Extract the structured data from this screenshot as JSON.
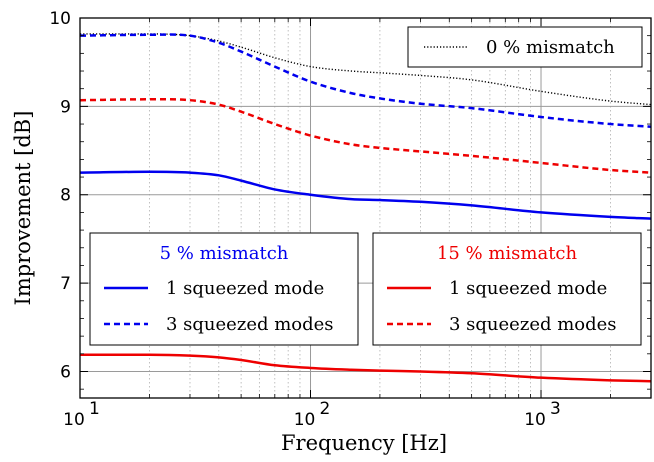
{
  "chart_data": {
    "type": "line",
    "xlabel": "Frequency [Hz]",
    "ylabel": "Improvement [dB]",
    "xscale": "log",
    "xlim": [
      10,
      3000
    ],
    "ylim": [
      5.7,
      10
    ],
    "xticks": [
      {
        "value": 10,
        "base": "10",
        "exp": "1"
      },
      {
        "value": 100,
        "base": "10",
        "exp": "2"
      },
      {
        "value": 1000,
        "base": "10",
        "exp": "3"
      }
    ],
    "yticks": [
      6,
      7,
      8,
      9,
      10
    ],
    "grid": true,
    "colors": {
      "zero": "#000000",
      "five": "#0000ee",
      "fifteen": "#ee0000"
    },
    "series": [
      {
        "name": "0 % mismatch",
        "color": "#000000",
        "dash": "dotted",
        "x": [
          10,
          20,
          30,
          40,
          50,
          70,
          100,
          150,
          200,
          300,
          500,
          1000,
          2000,
          3000
        ],
        "y": [
          9.82,
          9.82,
          9.8,
          9.74,
          9.67,
          9.55,
          9.45,
          9.4,
          9.38,
          9.35,
          9.3,
          9.17,
          9.06,
          9.02
        ]
      },
      {
        "name": "1 squeezed mode",
        "group": "5 % mismatch",
        "color": "#0000ee",
        "dash": "solid",
        "x": [
          10,
          20,
          30,
          40,
          50,
          70,
          100,
          150,
          200,
          300,
          500,
          1000,
          2000,
          3000
        ],
        "y": [
          8.25,
          8.26,
          8.25,
          8.22,
          8.16,
          8.06,
          8.0,
          7.95,
          7.94,
          7.92,
          7.88,
          7.8,
          7.75,
          7.73
        ]
      },
      {
        "name": "3 squeezed modes",
        "group": "5 % mismatch",
        "color": "#0000ee",
        "dash": "dashed",
        "x": [
          10,
          20,
          30,
          40,
          50,
          70,
          100,
          150,
          200,
          300,
          500,
          1000,
          2000,
          3000
        ],
        "y": [
          9.8,
          9.81,
          9.8,
          9.72,
          9.62,
          9.45,
          9.28,
          9.15,
          9.09,
          9.03,
          8.98,
          8.88,
          8.8,
          8.77
        ]
      },
      {
        "name": "1 squeezed mode",
        "group": "15 % mismatch",
        "color": "#ee0000",
        "dash": "solid",
        "x": [
          10,
          20,
          30,
          40,
          50,
          70,
          100,
          150,
          200,
          300,
          500,
          1000,
          2000,
          3000
        ],
        "y": [
          6.19,
          6.19,
          6.18,
          6.16,
          6.13,
          6.07,
          6.04,
          6.02,
          6.01,
          6.0,
          5.98,
          5.93,
          5.9,
          5.89
        ]
      },
      {
        "name": "3 squeezed modes",
        "group": "15 % mismatch",
        "color": "#ee0000",
        "dash": "dashed",
        "x": [
          10,
          20,
          30,
          40,
          50,
          70,
          100,
          150,
          200,
          300,
          500,
          1000,
          2000,
          3000
        ],
        "y": [
          9.07,
          9.08,
          9.07,
          9.02,
          8.94,
          8.8,
          8.67,
          8.57,
          8.53,
          8.49,
          8.44,
          8.36,
          8.28,
          8.25
        ]
      }
    ],
    "legends": [
      {
        "position": "top-right",
        "entries": [
          "0 % mismatch"
        ]
      },
      {
        "position": "lower-left",
        "title": "5 % mismatch",
        "entries": [
          "1 squeezed mode",
          "3 squeezed modes"
        ]
      },
      {
        "position": "lower-right",
        "title": "15 % mismatch",
        "entries": [
          "1 squeezed mode",
          "3 squeezed modes"
        ]
      }
    ]
  }
}
